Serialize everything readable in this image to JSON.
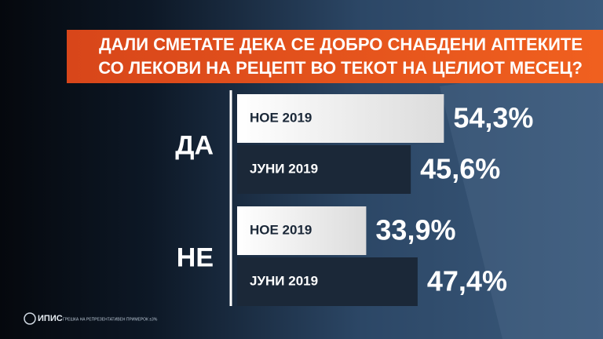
{
  "chart_data": {
    "type": "bar",
    "title": [
      "ДАЛИ СМЕТАТЕ ДЕКА СЕ ДОБРО СНАБДЕНИ АПТЕКИТЕ",
      "СО ЛЕКОВИ НА РЕЦЕПТ ВО ТЕКОТ НА ЦЕЛИОТ МЕСЕЦ?"
    ],
    "categories": [
      "ДА",
      "НЕ"
    ],
    "series": [
      {
        "name": "НОЕ 2019",
        "color": "#f2f2f2",
        "values": [
          54.3,
          33.9
        ],
        "value_labels": [
          "54,3%",
          "33,9%"
        ]
      },
      {
        "name": "ЈУНИ 2019",
        "color": "#1b2838",
        "values": [
          45.6,
          47.4
        ],
        "value_labels": [
          "45,6%",
          "47,4%"
        ]
      }
    ],
    "footer": {
      "logo": "ИПИС",
      "note": "ГРЕШКА НА РЕПРЕЗЕНТАТИВЕН ПРИМЕРОК ±3%"
    }
  }
}
